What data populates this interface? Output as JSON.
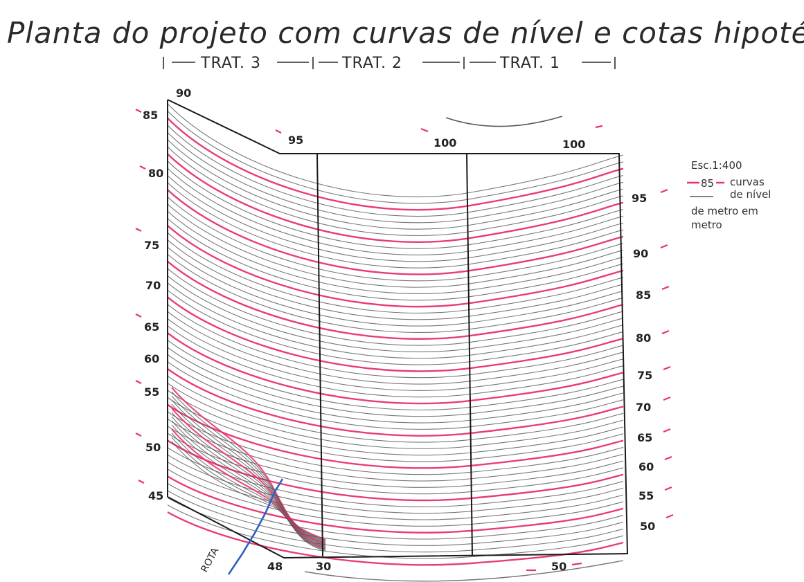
{
  "title": "Planta do projeto com curvas de nível e cotas hipotéticas",
  "treatments": [
    "TRAT. 3",
    "TRAT. 2",
    "TRAT. 1"
  ],
  "legend": {
    "scale": "Esc.1:400",
    "index_label": "85",
    "curves_line1": "curvas",
    "curves_line2": "de nível",
    "curves_line3": "de metro em",
    "curves_line4": "metro"
  },
  "elevations_left": [
    "90",
    "85",
    "80",
    "75",
    "70",
    "65",
    "60",
    "55",
    "50",
    "45",
    "48"
  ],
  "elevations_top": [
    "95",
    "100",
    "100"
  ],
  "elevations_right": [
    "95",
    "90",
    "85",
    "80",
    "75",
    "70",
    "65",
    "60",
    "55",
    "50"
  ],
  "elevations_bottom": [
    "30",
    "50"
  ],
  "rota_label": "ROTA",
  "colors": {
    "index_curve": "#e8326c",
    "minor_curve": "#555555",
    "rota": "#2f5fc4",
    "frame": "#1a1a1a"
  }
}
